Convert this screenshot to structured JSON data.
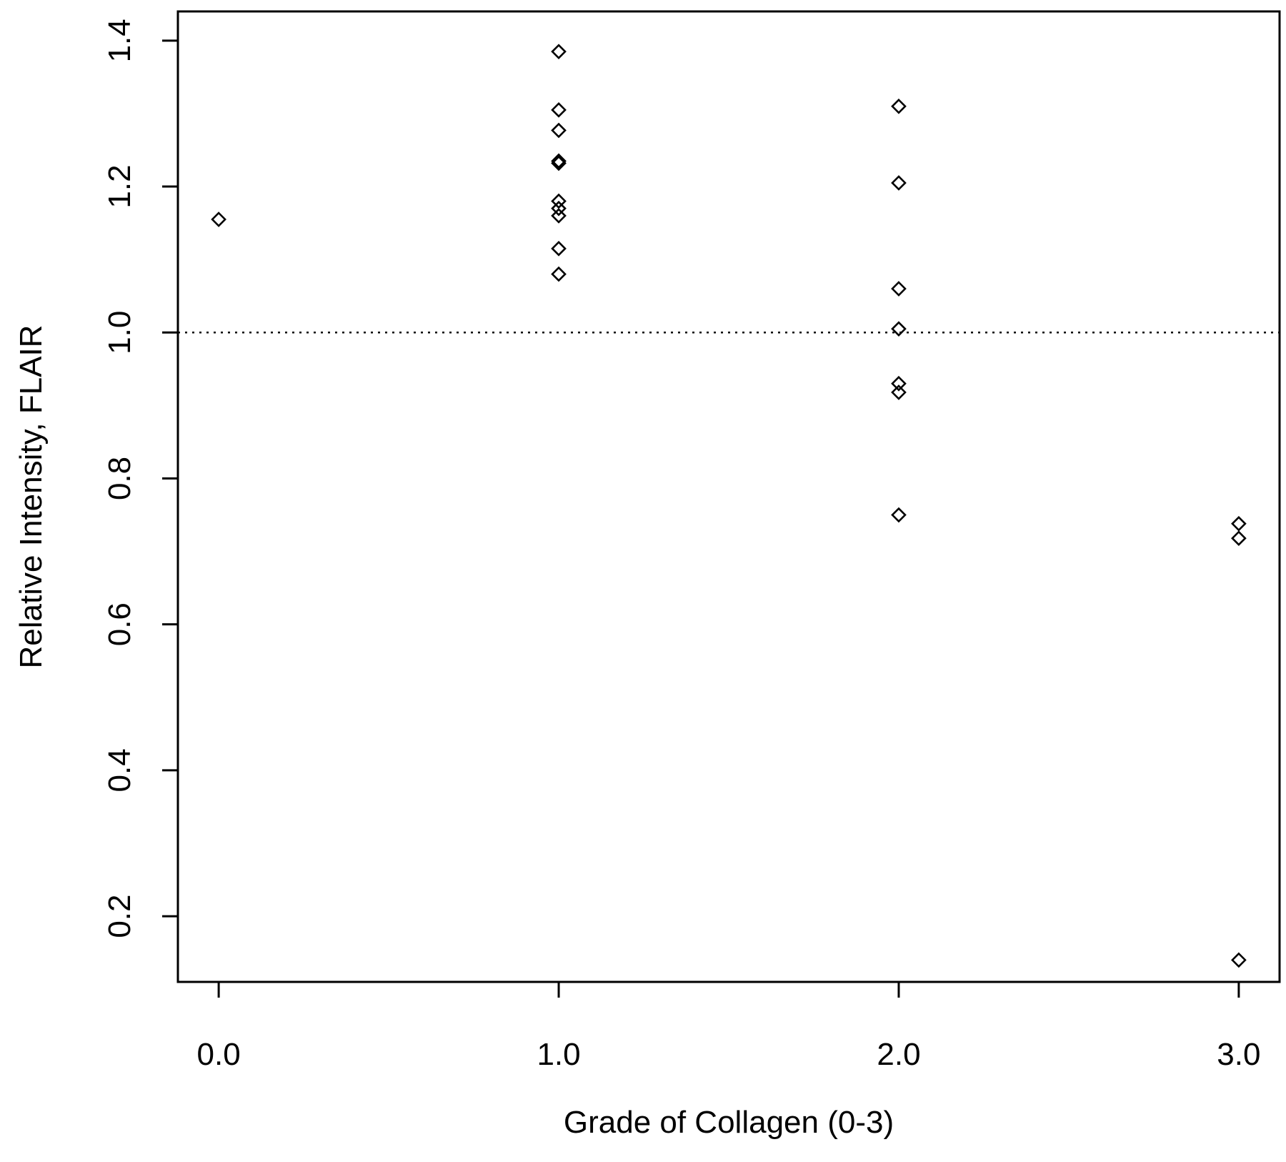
{
  "chart_data": {
    "type": "scatter",
    "xlabel": "Grade of Collagen (0-3)",
    "ylabel": "Relative Intensity, FLAIR",
    "xlim": [
      -0.12,
      3.12
    ],
    "ylim": [
      0.11,
      1.44
    ],
    "x_ticks": [
      0.0,
      1.0,
      2.0,
      3.0
    ],
    "x_tick_labels": [
      "0.0",
      "1.0",
      "2.0",
      "3.0"
    ],
    "y_ticks": [
      0.2,
      0.4,
      0.6,
      0.8,
      1.0,
      1.2,
      1.4
    ],
    "y_tick_labels": [
      "0.2",
      "0.4",
      "0.6",
      "0.8",
      "1.0",
      "1.2",
      "1.4"
    ],
    "reference_line": {
      "y": 1.0,
      "style": "dotted"
    },
    "grid": false,
    "marker": "diamond-open",
    "series": [
      {
        "points": [
          {
            "x": 0,
            "y": 1.155
          },
          {
            "x": 1,
            "y": 1.385
          },
          {
            "x": 1,
            "y": 1.305
          },
          {
            "x": 1,
            "y": 1.277
          },
          {
            "x": 1,
            "y": 1.235
          },
          {
            "x": 1,
            "y": 1.232
          },
          {
            "x": 1,
            "y": 1.18
          },
          {
            "x": 1,
            "y": 1.17
          },
          {
            "x": 1,
            "y": 1.16
          },
          {
            "x": 1,
            "y": 1.115
          },
          {
            "x": 1,
            "y": 1.08
          },
          {
            "x": 2,
            "y": 1.31
          },
          {
            "x": 2,
            "y": 1.205
          },
          {
            "x": 2,
            "y": 1.06
          },
          {
            "x": 2,
            "y": 1.005
          },
          {
            "x": 2,
            "y": 0.93
          },
          {
            "x": 2,
            "y": 0.918
          },
          {
            "x": 2,
            "y": 0.75
          },
          {
            "x": 3,
            "y": 0.738
          },
          {
            "x": 3,
            "y": 0.718
          },
          {
            "x": 3,
            "y": 0.14
          }
        ]
      }
    ]
  }
}
